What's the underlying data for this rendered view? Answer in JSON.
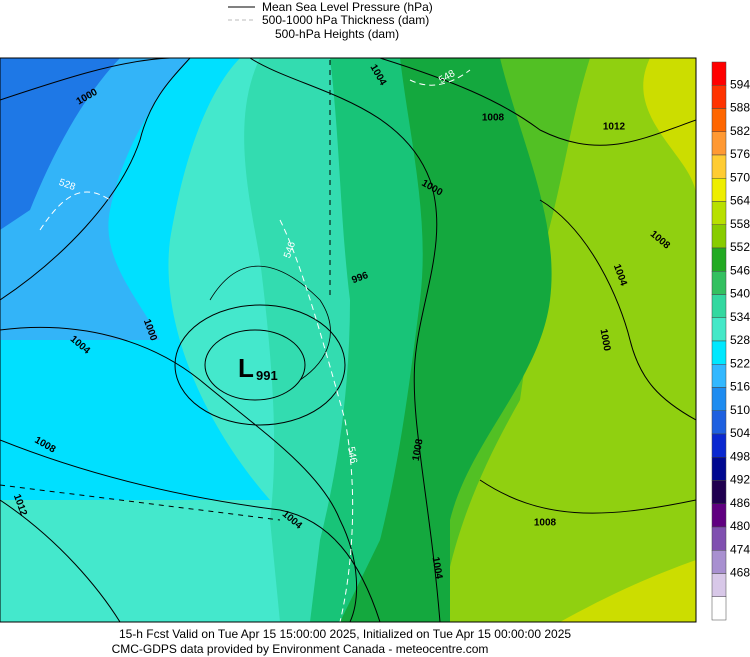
{
  "legend": [
    "Mean Sea Level Pressure (hPa)",
    "500-1000 hPa Thickness (dam)",
    "500-hPa Heights (dam)"
  ],
  "colorbar": {
    "labels": [
      594,
      588,
      582,
      576,
      570,
      564,
      558,
      552,
      546,
      540,
      534,
      528,
      522,
      516,
      510,
      504,
      498,
      492,
      486,
      480,
      474,
      468
    ],
    "colors": [
      "#ff0000",
      "#ff3300",
      "#ff6600",
      "#ff9933",
      "#ffcc33",
      "#eeee00",
      "#b8e000",
      "#88cc00",
      "#22aa22",
      "#33c060",
      "#33d8a0",
      "#44e8c8",
      "#00e8ff",
      "#33b8ff",
      "#1e8cf0",
      "#1e60e0",
      "#0a28d0",
      "#000890",
      "#200050",
      "#600080",
      "#8050b0",
      "#a890d0",
      "#d8c8e8",
      "#ffffff"
    ]
  },
  "isobar_labels": [
    "1000",
    "528",
    "1004",
    "548",
    "1008",
    "1012",
    "1000",
    "546",
    "996",
    "1008",
    "1004",
    "1000",
    "1000",
    "1004",
    "1008",
    "546",
    "1008",
    "1012",
    "1004",
    "1008",
    "1004"
  ],
  "low": {
    "symbol": "L",
    "value": "991"
  },
  "footer": [
    "15-h Fcst Valid on Tue Apr 15 15:00:00 2025, Initialized on Tue Apr 15 00:00:00 2025",
    "CMC-GDPS data provided by Environment Canada - meteocentre.com"
  ]
}
